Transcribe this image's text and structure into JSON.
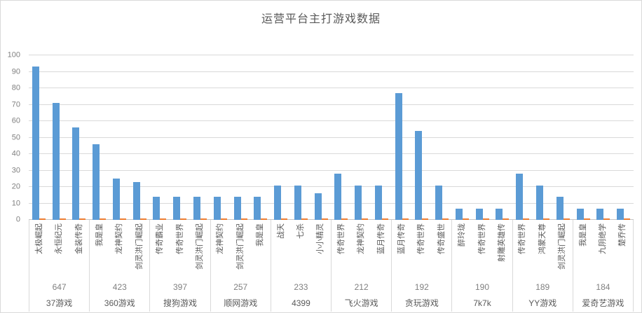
{
  "title": "运营平台主打游戏数据",
  "colors": {
    "bar_primary": "#5b9bd5",
    "bar_secondary": "#ed7d31",
    "gridline": "#d9d9d9",
    "axis_text": "#808080",
    "label_text": "#595959",
    "frame_border": "#d9d9d9"
  },
  "chart_data": {
    "type": "bar",
    "title": "运营平台主打游戏数据",
    "xlabel": "",
    "ylabel": "",
    "ylim": [
      0,
      100
    ],
    "yticks": [
      0,
      10,
      20,
      30,
      40,
      50,
      60,
      70,
      80,
      90,
      100
    ],
    "grid": true,
    "legend": "none",
    "series_layout": "each game has a tall blue bar (value) and a tiny orange marker at the baseline (secondary value ~1)",
    "groups": [
      {
        "platform": "37游戏",
        "total": "647",
        "games": [
          {
            "name": "太极崛起",
            "value": 93,
            "secondary": 1
          },
          {
            "name": "永恒纪元",
            "value": 71,
            "secondary": 1
          },
          {
            "name": "金装传奇",
            "value": 56,
            "secondary": 1
          }
        ]
      },
      {
        "platform": "360游戏",
        "total": "423",
        "games": [
          {
            "name": "我是皇",
            "value": 46,
            "secondary": 1
          },
          {
            "name": "龙神契约",
            "value": 25,
            "secondary": 1
          },
          {
            "name": "剑灵洪门崛起",
            "value": 23,
            "secondary": 1
          }
        ]
      },
      {
        "platform": "搜狗游戏",
        "total": "397",
        "games": [
          {
            "name": "传奇霸业",
            "value": 14,
            "secondary": 1
          },
          {
            "name": "传奇世界",
            "value": 14,
            "secondary": 1
          },
          {
            "name": "剑灵洪门崛起",
            "value": 14,
            "secondary": 1
          }
        ]
      },
      {
        "platform": "顺网游戏",
        "total": "257",
        "games": [
          {
            "name": "龙神契约",
            "value": 14,
            "secondary": 1
          },
          {
            "name": "剑灵洪门崛起",
            "value": 14,
            "secondary": 1
          },
          {
            "name": "我是皇",
            "value": 14,
            "secondary": 1
          }
        ]
      },
      {
        "platform": "4399",
        "total": "233",
        "games": [
          {
            "name": "战天",
            "value": 21,
            "secondary": 1
          },
          {
            "name": "七杀",
            "value": 21,
            "secondary": 1
          },
          {
            "name": "小小精灵",
            "value": 16,
            "secondary": 1
          }
        ]
      },
      {
        "platform": "飞火游戏",
        "total": "212",
        "games": [
          {
            "name": "传奇世界",
            "value": 28,
            "secondary": 1
          },
          {
            "name": "龙神契约",
            "value": 21,
            "secondary": 1
          },
          {
            "name": "蓝月传奇",
            "value": 21,
            "secondary": 1
          }
        ]
      },
      {
        "platform": "贪玩游戏",
        "total": "192",
        "games": [
          {
            "name": "蓝月传奇",
            "value": 77,
            "secondary": 1
          },
          {
            "name": "传奇世界",
            "value": 54,
            "secondary": 1
          },
          {
            "name": "传奇盛世",
            "value": 21,
            "secondary": 1
          }
        ]
      },
      {
        "platform": "7k7k",
        "total": "190",
        "games": [
          {
            "name": "醉玲珑",
            "value": 7,
            "secondary": 1
          },
          {
            "name": "传奇世界",
            "value": 7,
            "secondary": 1
          },
          {
            "name": "射雕英雄传",
            "value": 7,
            "secondary": 1
          }
        ]
      },
      {
        "platform": "YY游戏",
        "total": "189",
        "games": [
          {
            "name": "传奇世界",
            "value": 28,
            "secondary": 1
          },
          {
            "name": "鸿蒙天尊",
            "value": 21,
            "secondary": 1
          },
          {
            "name": "剑灵洪门崛起",
            "value": 14,
            "secondary": 1
          }
        ]
      },
      {
        "platform": "爱奇艺游戏",
        "total": "184",
        "games": [
          {
            "name": "我是皇",
            "value": 7,
            "secondary": 1
          },
          {
            "name": "九阴绝学",
            "value": 7,
            "secondary": 1
          },
          {
            "name": "楚乔传",
            "value": 7,
            "secondary": 1
          }
        ]
      }
    ]
  }
}
